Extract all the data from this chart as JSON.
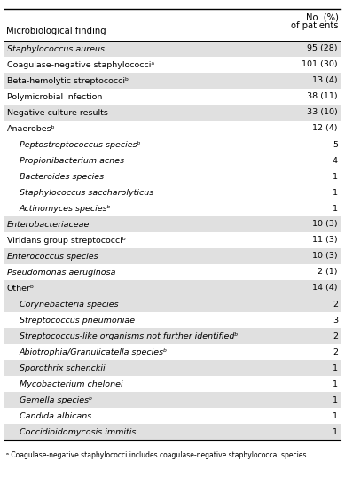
{
  "title_left": "Microbiological finding",
  "rows": [
    {
      "label": "Staphylococcus aureus",
      "value": "95 (28)",
      "indent": 0,
      "italic": true,
      "shaded": true
    },
    {
      "label": "Coagulase-negative staphylococciᵃ",
      "value": "101 (30)",
      "indent": 0,
      "italic": false,
      "shaded": false
    },
    {
      "label": "Beta-hemolytic streptococciᵇ",
      "value": "13 (4)",
      "indent": 0,
      "italic": false,
      "shaded": true
    },
    {
      "label": "Polymicrobial infection",
      "value": "38 (11)",
      "indent": 0,
      "italic": false,
      "shaded": false
    },
    {
      "label": "Negative culture results",
      "value": "33 (10)",
      "indent": 0,
      "italic": false,
      "shaded": true
    },
    {
      "label": "Anaerobesᵇ",
      "value": "12 (4)",
      "indent": 0,
      "italic": false,
      "shaded": false
    },
    {
      "label": "Peptostreptococcus speciesᵇ",
      "value": "5",
      "indent": 1,
      "italic": true,
      "shaded": false
    },
    {
      "label": "Propionibacterium acnes",
      "value": "4",
      "indent": 1,
      "italic": true,
      "shaded": false
    },
    {
      "label": "Bacteroides species",
      "value": "1",
      "indent": 1,
      "italic": true,
      "shaded": false
    },
    {
      "label": "Staphylococcus saccharolyticus",
      "value": "1",
      "indent": 1,
      "italic": true,
      "shaded": false
    },
    {
      "label": "Actinomyces speciesᵇ",
      "value": "1",
      "indent": 1,
      "italic": true,
      "shaded": false
    },
    {
      "label": "Enterobacteriaceae",
      "value": "10 (3)",
      "indent": 0,
      "italic": true,
      "shaded": true
    },
    {
      "label": "Viridans group streptococciᵇ",
      "value": "11 (3)",
      "indent": 0,
      "italic": false,
      "shaded": false
    },
    {
      "label": "Enterococcus species",
      "value": "10 (3)",
      "indent": 0,
      "italic": true,
      "shaded": true
    },
    {
      "label": "Pseudomonas aeruginosa",
      "value": "2 (1)",
      "indent": 0,
      "italic": true,
      "shaded": false
    },
    {
      "label": "Otherᵇ",
      "value": "14 (4)",
      "indent": 0,
      "italic": false,
      "shaded": true
    },
    {
      "label": "Corynebacteria species",
      "value": "2",
      "indent": 1,
      "italic": true,
      "shaded": true
    },
    {
      "label": "Streptococcus pneumoniae",
      "value": "3",
      "indent": 1,
      "italic": true,
      "shaded": false
    },
    {
      "label": "Streptococcus-like organisms not further identifiedᵇ",
      "value": "2",
      "indent": 1,
      "italic": true,
      "shaded": true
    },
    {
      "label": "Abiotrophia/Granulicatella speciesᵇ",
      "value": "2",
      "indent": 1,
      "italic": true,
      "shaded": false
    },
    {
      "label": "Sporothrix schenckii",
      "value": "1",
      "indent": 1,
      "italic": true,
      "shaded": true
    },
    {
      "label": "Mycobacterium chelonei",
      "value": "1",
      "indent": 1,
      "italic": true,
      "shaded": false
    },
    {
      "label": "Gemella speciesᵇ",
      "value": "1",
      "indent": 1,
      "italic": true,
      "shaded": true
    },
    {
      "label": "Candida albicans",
      "value": "1",
      "indent": 1,
      "italic": true,
      "shaded": false
    },
    {
      "label": "Coccidioidomycosis immitis",
      "value": "1",
      "indent": 1,
      "italic": true,
      "shaded": true
    }
  ],
  "footer_a": "ᵃ Coagulase-negative staphylococci includes coagulase-negative staphylococcal species.",
  "bg_color": "#ffffff",
  "shaded_color": "#e0e0e0",
  "font_size": 6.8,
  "header_font_size": 7.2
}
